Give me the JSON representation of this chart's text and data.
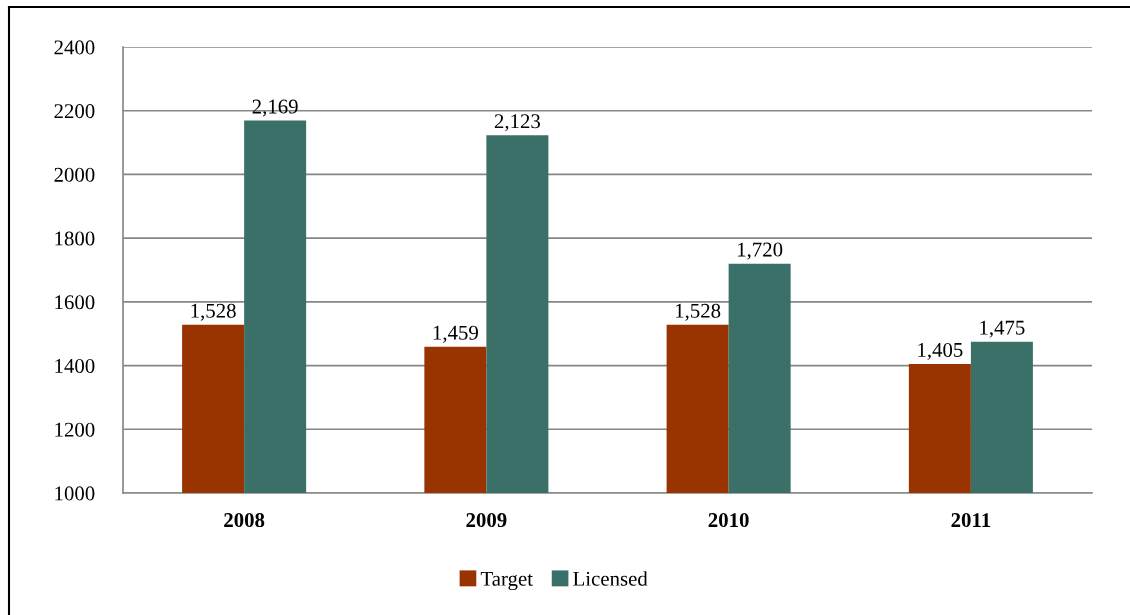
{
  "chart_data": {
    "type": "bar",
    "categories": [
      "2008",
      "2009",
      "2010",
      "2011"
    ],
    "series": [
      {
        "name": "Target",
        "color": "#993300",
        "values": [
          1528,
          1459,
          1528,
          1405
        ],
        "value_labels": [
          "1,528",
          "1,459",
          "1,528",
          "1,405"
        ]
      },
      {
        "name": "Licensed",
        "color": "#3a7068",
        "values": [
          2169,
          2123,
          1720,
          1475
        ],
        "value_labels": [
          "2,169",
          "2,123",
          "1,720",
          "1,475"
        ]
      }
    ],
    "ylim": [
      1000,
      2400
    ],
    "yticks": [
      1000,
      1200,
      1400,
      1600,
      1800,
      2000,
      2200,
      2400
    ],
    "grid": "y",
    "legend": "bottom"
  }
}
